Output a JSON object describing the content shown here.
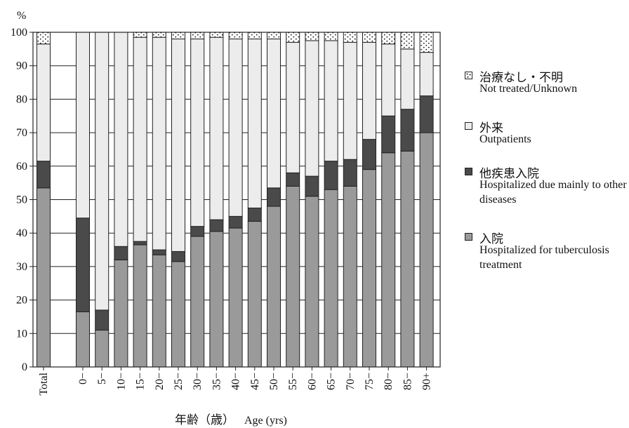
{
  "chart_data": {
    "type": "stacked-bar",
    "y_unit_label": "%",
    "ylim": [
      0,
      100
    ],
    "yticks": [
      0,
      10,
      20,
      30,
      40,
      50,
      60,
      70,
      80,
      90,
      100
    ],
    "x_axis_label_jp": "年齢（歳）",
    "x_axis_label_en": "Age (yrs)",
    "categories": [
      "Total",
      "0−",
      "5−",
      "10−",
      "15−",
      "20−",
      "25−",
      "30−",
      "35−",
      "40−",
      "45−",
      "50−",
      "55−",
      "60−",
      "65−",
      "70−",
      "75−",
      "80−",
      "85−",
      "90+"
    ],
    "series": [
      {
        "key": "hosp_tb",
        "jp": "入院",
        "en": "Hospitalized for tuberculosis treatment",
        "values": [
          53.5,
          16.5,
          11,
          32,
          36.5,
          33.5,
          31.5,
          39,
          40.5,
          41.5,
          43.5,
          48,
          54,
          51,
          53,
          54,
          59,
          64,
          64.5,
          70
        ]
      },
      {
        "key": "hosp_other",
        "jp": "他疾患入院",
        "en": "Hospitalized due mainly to other diseases",
        "values": [
          8,
          28,
          6,
          4,
          1,
          1.5,
          3,
          3,
          3.5,
          3.5,
          4,
          5.5,
          4,
          6,
          8.5,
          8,
          9,
          11,
          12.5,
          11
        ]
      },
      {
        "key": "outpatient",
        "jp": "外来",
        "en": "Outpatients",
        "values": [
          35,
          55.5,
          83,
          64,
          61,
          63.5,
          63.5,
          56,
          54.5,
          53,
          50.5,
          44.5,
          39,
          40.5,
          36,
          35,
          29,
          21.5,
          18,
          13
        ]
      },
      {
        "key": "not_treated",
        "jp": "治療なし・不明",
        "en": "Not treated/Unknown",
        "values": [
          3.5,
          0,
          0,
          0,
          1.5,
          1.5,
          2,
          2,
          1.5,
          2,
          2,
          2,
          3,
          2.5,
          2.5,
          3,
          3,
          3.5,
          5,
          6
        ]
      }
    ],
    "legend_order": [
      "not_treated",
      "outpatient",
      "hosp_other",
      "hosp_tb"
    ],
    "colors": {
      "hosp_tb": "#9a9a9a",
      "hosp_other": "#4a4a4a",
      "outpatient": "#ececec",
      "not_treated": "#ffffff"
    },
    "grid": true,
    "legend_position": "right"
  }
}
